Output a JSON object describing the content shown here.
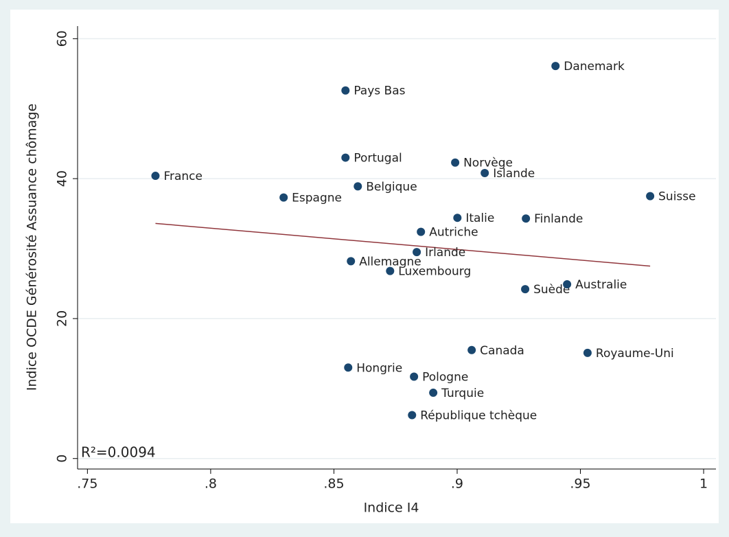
{
  "chart_data": {
    "type": "scatter",
    "x_label": "Indice I4",
    "y_label": "Indice OCDE Générosité Assuance chômage",
    "annotation": "R²=0.0094",
    "color": "#1a476f",
    "point_labels": [
      "France",
      "Espagne",
      "Pays Bas",
      "Portugal",
      "Belgique",
      "Allemagne",
      "Hongrie",
      "Luxembourg",
      "Autriche",
      "Irlande",
      "Pologne",
      "République tchèque",
      "Turquie",
      "Italie",
      "Norvège",
      "Islande",
      "Canada",
      "Finlande",
      "Suède",
      "Danemark",
      "Australie",
      "Royaume-Uni",
      "Suisse"
    ],
    "x": [
      0.7776,
      0.8296,
      0.8547,
      0.8547,
      0.8597,
      0.8569,
      0.8558,
      0.8728,
      0.8853,
      0.8836,
      0.8825,
      0.8817,
      0.8903,
      0.9001,
      0.8992,
      0.9112,
      0.9059,
      0.9279,
      0.9276,
      0.9399,
      0.9446,
      0.9529,
      0.9783
    ],
    "values": [
      40.4,
      37.3,
      52.6,
      43.0,
      38.9,
      28.2,
      13.0,
      26.8,
      32.4,
      29.5,
      11.7,
      6.2,
      9.4,
      34.4,
      42.3,
      40.8,
      15.5,
      34.3,
      24.2,
      56.1,
      24.9,
      15.1,
      37.5
    ],
    "fit_line": {
      "color": "#90353b",
      "x": [
        0.7776,
        0.9783
      ],
      "values": [
        33.6,
        27.5
      ]
    },
    "xlim": [
      0.746,
      1.005
    ],
    "ylim": [
      -1.5,
      61.8
    ],
    "xticks": [
      {
        "value": 0.75,
        "label": ".75"
      },
      {
        "value": 0.8,
        "label": ".8"
      },
      {
        "value": 0.85,
        "label": ".85"
      },
      {
        "value": 0.9,
        "label": ".9"
      },
      {
        "value": 0.95,
        "label": ".95"
      },
      1
    ],
    "yticks": [
      0,
      20,
      40,
      60
    ],
    "grid": true
  }
}
